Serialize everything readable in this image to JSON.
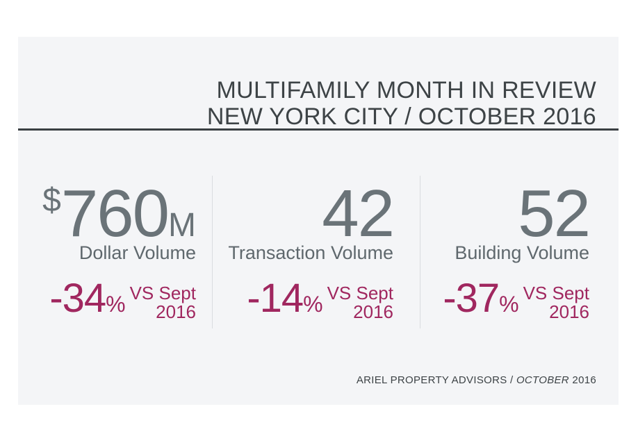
{
  "header": {
    "title_line1": "MULTIFAMILY MONTH IN REVIEW",
    "title_line2": "NEW YORK CITY / OCTOBER 2016"
  },
  "stats": [
    {
      "prefix": "$",
      "value": "760",
      "suffix": "M",
      "label": "Dollar Volume",
      "change": "-34",
      "change_sign": "%",
      "vs_line1": "VS Sept",
      "vs_line2": "2016"
    },
    {
      "prefix": "",
      "value": "42",
      "suffix": "",
      "label": "Transaction Volume",
      "change": "-14",
      "change_sign": "%",
      "vs_line1": "VS Sept",
      "vs_line2": "2016"
    },
    {
      "prefix": "",
      "value": "52",
      "suffix": "",
      "label": "Building Volume",
      "change": "-37",
      "change_sign": "%",
      "vs_line1": "VS Sept",
      "vs_line2": "2016"
    }
  ],
  "footer": {
    "source": "ARIEL PROPERTY ADVISORS",
    "separator": " / ",
    "month": "OCTOBER",
    "year": " 2016"
  },
  "colors": {
    "accent": "#a0275f",
    "stat_gray": "#6a7378",
    "title_dark": "#3d4346",
    "card_bg": "#f4f5f7"
  }
}
